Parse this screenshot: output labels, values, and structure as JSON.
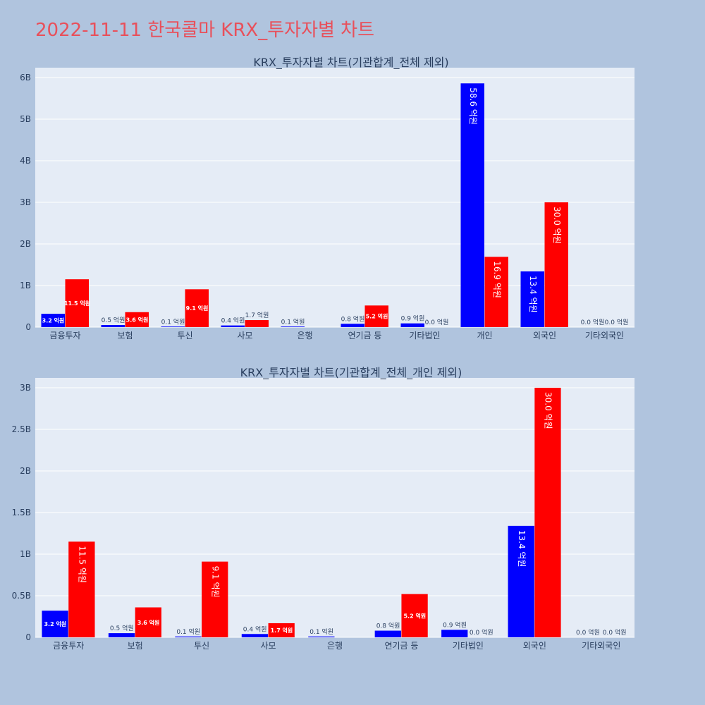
{
  "page": {
    "title": "2022-11-11 한국콜마 KRX_투자자별 차트"
  },
  "colors": {
    "background": "#b0c4de",
    "plot_bg": "#e5ecf6",
    "title": "#e8505b",
    "series_blue": "#0000ff",
    "series_red": "#ff0000"
  },
  "chart_data": [
    {
      "type": "bar",
      "title": "KRX_투자자별 차트(기관합계_전체 제외)",
      "categories": [
        "금융투자",
        "보험",
        "투신",
        "사모",
        "은행",
        "연기금 등",
        "기타법인",
        "개인",
        "외국인",
        "기타외국인"
      ],
      "ylim": [
        0,
        6000000000
      ],
      "yticks": [
        0,
        1000000000,
        2000000000,
        3000000000,
        4000000000,
        5000000000,
        6000000000
      ],
      "ytick_labels": [
        "0",
        "1B",
        "2B",
        "3B",
        "4B",
        "5B",
        "6B"
      ],
      "grid": true,
      "series": [
        {
          "color": "#0000ff",
          "values": [
            320000000,
            50000000,
            10000000,
            40000000,
            10000000,
            80000000,
            90000000,
            5860000000,
            1340000000,
            0
          ],
          "labels": [
            "3.2 억원",
            "0.5 억원",
            "0.1 억원",
            "0.4 억원",
            "0.1 억원",
            "0.8 억원",
            "0.9 억원",
            "58.6 억원",
            "13.4 억원",
            "0.0 억원"
          ]
        },
        {
          "color": "#ff0000",
          "values": [
            1150000000,
            360000000,
            910000000,
            170000000,
            0,
            520000000,
            0,
            1690000000,
            3000000000,
            0
          ],
          "labels": [
            "11.5 억원",
            "3.6 억원",
            "9.1 억원",
            "1.7 억원",
            "",
            "5.2 억원",
            "0.0 억원",
            "16.9 억원",
            "30.0 억원",
            "0.0 억원"
          ]
        }
      ]
    },
    {
      "type": "bar",
      "title": "KRX_투자자별 차트(기관합계_전체_개인 제외)",
      "categories": [
        "금융투자",
        "보험",
        "투신",
        "사모",
        "은행",
        "연기금 등",
        "기타법인",
        "외국인",
        "기타외국인"
      ],
      "ylim": [
        0,
        3000000000
      ],
      "yticks": [
        0,
        500000000,
        1000000000,
        1500000000,
        2000000000,
        2500000000,
        3000000000
      ],
      "ytick_labels": [
        "0",
        "0.5B",
        "1B",
        "1.5B",
        "2B",
        "2.5B",
        "3B"
      ],
      "grid": true,
      "series": [
        {
          "color": "#0000ff",
          "values": [
            320000000,
            50000000,
            10000000,
            40000000,
            10000000,
            80000000,
            90000000,
            1340000000,
            0
          ],
          "labels": [
            "3.2 억원",
            "0.5 억원",
            "0.1 억원",
            "0.4 억원",
            "0.1 억원",
            "0.8 억원",
            "0.9 억원",
            "13.4 억원",
            "0.0 억원"
          ]
        },
        {
          "color": "#ff0000",
          "values": [
            1150000000,
            360000000,
            910000000,
            170000000,
            0,
            520000000,
            0,
            3000000000,
            0
          ],
          "labels": [
            "11.5 억원",
            "3.6 억원",
            "9.1 억원",
            "1.7 억원",
            "",
            "5.2 억원",
            "0.0 억원",
            "30.0 억원",
            "0.0 억원"
          ]
        }
      ]
    }
  ]
}
